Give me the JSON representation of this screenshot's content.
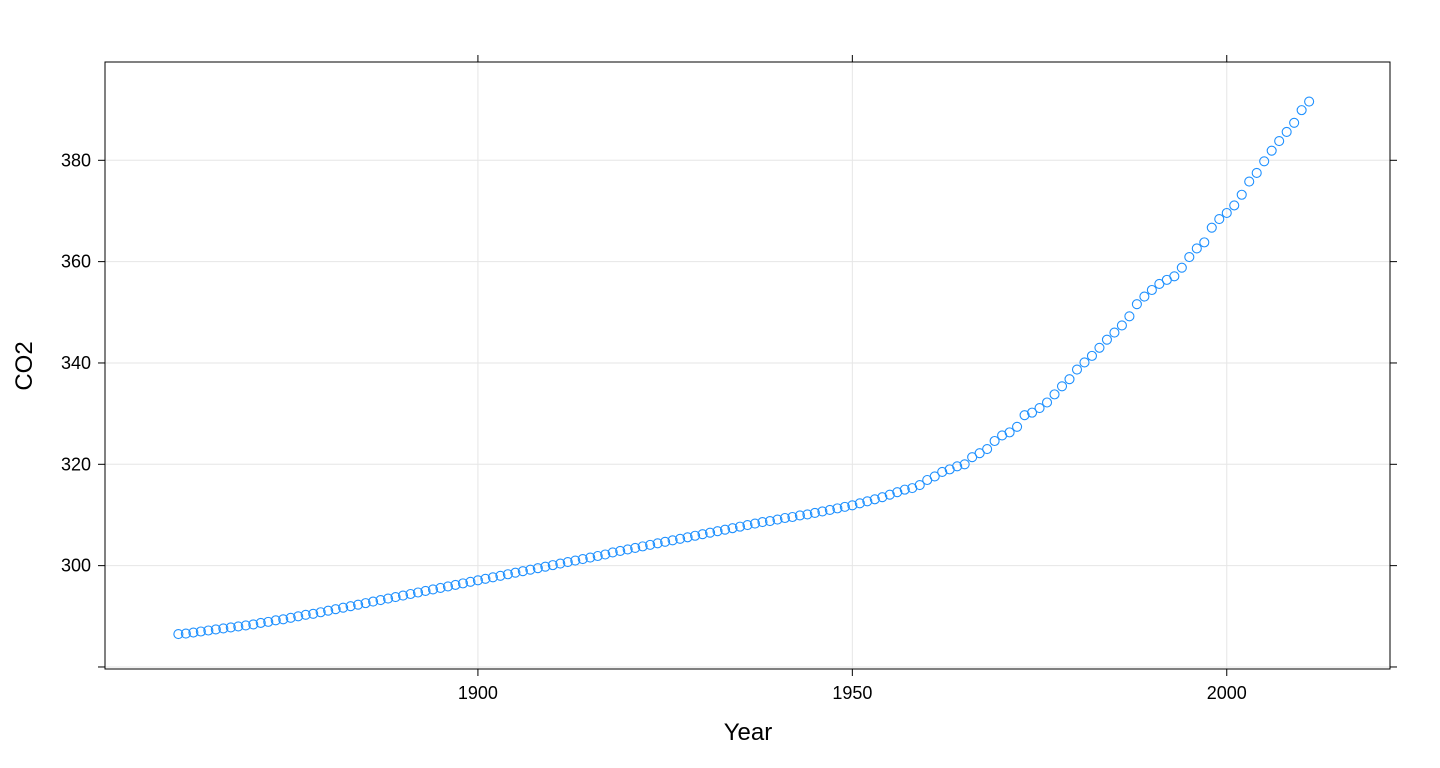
{
  "chart_data": {
    "type": "scatter",
    "xlabel": "Year",
    "ylabel": "CO2",
    "xlim": [
      1850.2,
      2021.8
    ],
    "ylim": [
      279.6,
      399.4
    ],
    "xticks": [
      1900,
      1950,
      2000
    ],
    "yticks": [
      280,
      300,
      320,
      340,
      360,
      380
    ],
    "ytick_labels_shown": [
      300,
      320,
      340,
      360,
      380
    ],
    "grid": true,
    "marker": "open-circle",
    "color": "#1E90FF",
    "series": [
      {
        "x": [
          1860,
          1861,
          1862,
          1863,
          1864,
          1865,
          1866,
          1867,
          1868,
          1869,
          1870,
          1871,
          1872,
          1873,
          1874,
          1875,
          1876,
          1877,
          1878,
          1879,
          1880,
          1881,
          1882,
          1883,
          1884,
          1885,
          1886,
          1887,
          1888,
          1889,
          1890,
          1891,
          1892,
          1893,
          1894,
          1895,
          1896,
          1897,
          1898,
          1899,
          1900,
          1901,
          1902,
          1903,
          1904,
          1905,
          1906,
          1907,
          1908,
          1909,
          1910,
          1911,
          1912,
          1913,
          1914,
          1915,
          1916,
          1917,
          1918,
          1919,
          1920,
          1921,
          1922,
          1923,
          1924,
          1925,
          1926,
          1927,
          1928,
          1929,
          1930,
          1931,
          1932,
          1933,
          1934,
          1935,
          1936,
          1937,
          1938,
          1939,
          1940,
          1941,
          1942,
          1943,
          1944,
          1945,
          1946,
          1947,
          1948,
          1949,
          1950,
          1951,
          1952,
          1953,
          1954,
          1955,
          1956,
          1957,
          1958,
          1959,
          1960,
          1961,
          1962,
          1963,
          1964,
          1965,
          1966,
          1967,
          1968,
          1969,
          1970,
          1971,
          1972,
          1973,
          1974,
          1975,
          1976,
          1977,
          1978,
          1979,
          1980,
          1981,
          1982,
          1983,
          1984,
          1985,
          1986,
          1987,
          1988,
          1989,
          1990,
          1991,
          1992,
          1993,
          1994,
          1995,
          1996,
          1997,
          1998,
          1999,
          2000,
          2001,
          2002,
          2003,
          2004,
          2005,
          2006,
          2007,
          2008,
          2009,
          2010,
          2011
        ],
        "y": [
          286.5,
          286.6,
          286.8,
          287.0,
          287.2,
          287.4,
          287.6,
          287.8,
          288.0,
          288.2,
          288.4,
          288.7,
          288.9,
          289.2,
          289.4,
          289.7,
          290.0,
          290.3,
          290.5,
          290.8,
          291.1,
          291.4,
          291.7,
          292.0,
          292.3,
          292.6,
          292.9,
          293.2,
          293.5,
          293.8,
          294.1,
          294.4,
          294.7,
          295.0,
          295.3,
          295.6,
          295.9,
          296.2,
          296.5,
          296.8,
          297.1,
          297.4,
          297.7,
          298.0,
          298.3,
          298.6,
          298.9,
          299.2,
          299.5,
          299.8,
          300.1,
          300.4,
          300.7,
          301.0,
          301.3,
          301.6,
          301.9,
          302.2,
          302.6,
          302.9,
          303.2,
          303.5,
          303.8,
          304.1,
          304.4,
          304.7,
          305.0,
          305.3,
          305.6,
          305.9,
          306.2,
          306.5,
          306.8,
          307.1,
          307.4,
          307.7,
          308.0,
          308.3,
          308.6,
          308.8,
          309.1,
          309.4,
          309.6,
          309.9,
          310.1,
          310.4,
          310.7,
          311.0,
          311.3,
          311.6,
          311.9,
          312.3,
          312.7,
          313.1,
          313.5,
          314.0,
          314.5,
          315.0,
          315.3,
          315.9,
          316.9,
          317.6,
          318.5,
          319.0,
          319.6,
          320.0,
          321.4,
          322.2,
          323.0,
          324.6,
          325.7,
          326.3,
          327.4,
          329.7,
          330.2,
          331.1,
          332.2,
          333.8,
          335.4,
          336.8,
          338.7,
          340.1,
          341.4,
          343.0,
          344.6,
          346.0,
          347.4,
          349.2,
          351.6,
          353.1,
          354.4,
          355.6,
          356.4,
          357.1,
          358.8,
          360.9,
          362.6,
          363.8,
          366.7,
          368.4,
          369.6,
          371.1,
          373.2,
          375.8,
          377.5,
          379.8,
          381.9,
          383.8,
          385.6,
          387.4,
          389.9,
          391.6
        ]
      }
    ]
  }
}
